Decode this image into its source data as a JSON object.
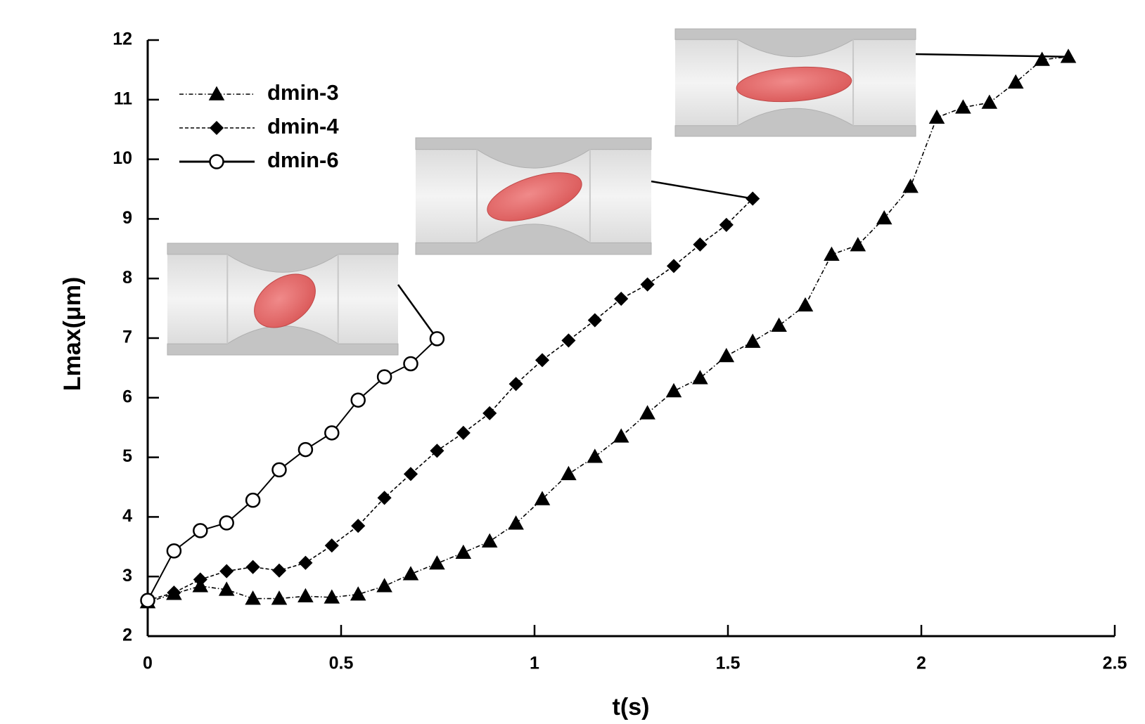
{
  "chart_data": {
    "type": "line",
    "xlabel": "t(s)",
    "ylabel": "Lmax(μm)",
    "xlim": [
      0,
      2.5
    ],
    "xticks": [
      0,
      0.5,
      1,
      1.5,
      2,
      2.5
    ],
    "ylim": [
      2,
      12
    ],
    "yticks": [
      2,
      3,
      4,
      5,
      6,
      7,
      8,
      9,
      10,
      11,
      12
    ],
    "legend": "upper left",
    "series": [
      {
        "name": "dmin-3",
        "color": "#000000",
        "marker": "triangle",
        "linestyle": "dashdot",
        "x": [
          0,
          0.068,
          0.136,
          0.204,
          0.272,
          0.34,
          0.408,
          0.476,
          0.544,
          0.612,
          0.68,
          0.748,
          0.816,
          0.884,
          0.952,
          1.02,
          1.088,
          1.156,
          1.224,
          1.292,
          1.36,
          1.428,
          1.496,
          1.564,
          1.632,
          1.7,
          1.768,
          1.836,
          1.904,
          1.972,
          2.04,
          2.108,
          2.176,
          2.244,
          2.312,
          2.38
        ],
        "values": [
          2.57,
          2.71,
          2.84,
          2.78,
          2.63,
          2.63,
          2.67,
          2.65,
          2.7,
          2.84,
          3.04,
          3.22,
          3.4,
          3.59,
          3.89,
          4.3,
          4.72,
          5.01,
          5.35,
          5.74,
          6.11,
          6.33,
          6.7,
          6.94,
          7.21,
          7.55,
          8.4,
          8.56,
          9.01,
          9.54,
          10.7,
          10.87,
          10.95,
          11.29,
          11.67,
          11.72
        ]
      },
      {
        "name": "dmin-4",
        "color": "#000000",
        "marker": "diamond",
        "linestyle": "dashed",
        "x": [
          0,
          0.068,
          0.136,
          0.204,
          0.272,
          0.34,
          0.408,
          0.476,
          0.544,
          0.612,
          0.68,
          0.748,
          0.816,
          0.884,
          0.952,
          1.02,
          1.088,
          1.156,
          1.224,
          1.292,
          1.36,
          1.428,
          1.496,
          1.564
        ],
        "values": [
          2.6,
          2.73,
          2.95,
          3.09,
          3.16,
          3.1,
          3.23,
          3.52,
          3.85,
          4.32,
          4.72,
          5.11,
          5.41,
          5.74,
          6.23,
          6.63,
          6.96,
          7.3,
          7.66,
          7.9,
          8.21,
          8.57,
          8.9,
          9.34
        ]
      },
      {
        "name": "dmin-6",
        "color": "#000000",
        "marker": "circle",
        "linestyle": "solid",
        "x": [
          0,
          0.068,
          0.136,
          0.204,
          0.272,
          0.34,
          0.408,
          0.476,
          0.544,
          0.612,
          0.68,
          0.748
        ],
        "values": [
          2.6,
          3.43,
          3.77,
          3.9,
          4.28,
          4.79,
          5.13,
          5.41,
          5.96,
          6.35,
          6.57,
          6.99
        ]
      }
    ]
  }
}
